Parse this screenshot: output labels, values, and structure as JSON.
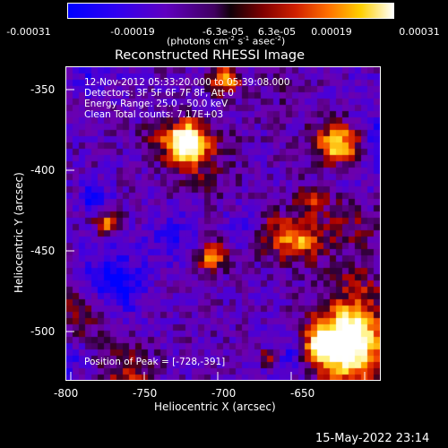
{
  "colorbar": {
    "ticks": [
      "-0.00031",
      "-0.00019",
      "-6.3e-05",
      "6.3e-05",
      "0.00019",
      "0.00031"
    ],
    "units_prefix": "(photons cm",
    "units_exp1": "-2",
    "units_mid": " s",
    "units_exp2": "-1",
    "units_mid2": " asec",
    "units_exp3": "-2",
    "units_suffix": ")"
  },
  "plot": {
    "title": "Reconstructed RHESSI Image",
    "xlabel": "Heliocentric X (arcsec)",
    "ylabel": "Heliocentric Y (arcsec)",
    "xticks": [
      "-800",
      "-750",
      "-700",
      "-650"
    ],
    "yticks": [
      "-350",
      "-400",
      "-450",
      "-500"
    ],
    "info_lines": [
      "12-Nov-2012 05:33:20.000 to 05:39:08.000",
      "Detectors: 3F 5F 6F 7F 8F, Att 0",
      "Energy Range: 25.0 - 50.0 keV",
      "Clean     Total counts: 7.17E+03"
    ],
    "peak_text": "Position of Peak = [-728,-391]",
    "footer_timestamp": "15-May-2022 23:14"
  },
  "colors": {
    "background": "#000000",
    "colormap": [
      "#0000ff",
      "#6000c0",
      "#500070",
      "#200010",
      "#b00000",
      "#ff6000",
      "#ffd000",
      "#ffffff"
    ]
  }
}
